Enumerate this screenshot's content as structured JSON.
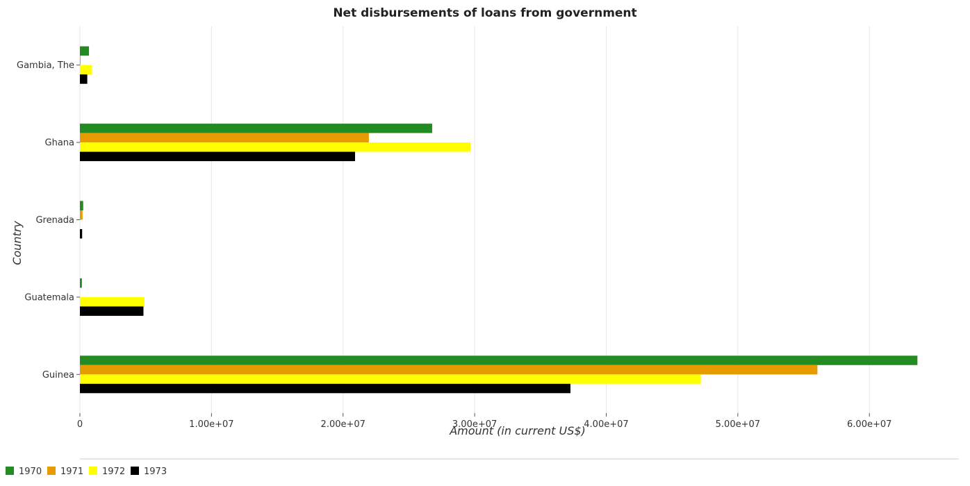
{
  "chart_data": {
    "type": "bar",
    "orientation": "horizontal",
    "title": "Net disbursements of loans from government",
    "xlabel": "Amount (in current US$)",
    "ylabel": "Country",
    "categories": [
      "Gambia, The",
      "Ghana",
      "Grenada",
      "Guatemala",
      "Guinea"
    ],
    "x_ticks": [
      0,
      10000000,
      20000000,
      30000000,
      40000000,
      50000000,
      60000000
    ],
    "x_tick_labels": [
      "0",
      "1.00e+07",
      "2.00e+07",
      "3.00e+07",
      "4.00e+07",
      "5.00e+07",
      "6.00e+07"
    ],
    "xlim": [
      0,
      66800000
    ],
    "legend_position": "bottom-left",
    "series": [
      {
        "name": "1970",
        "color": "#228b22",
        "values": [
          690000,
          26770000,
          250000,
          150000,
          63650000
        ]
      },
      {
        "name": "1971",
        "color": "#e69b00",
        "values": [
          50000,
          21960000,
          200000,
          0,
          56050000
        ]
      },
      {
        "name": "1972",
        "color": "#ffff00",
        "values": [
          920000,
          29680000,
          0,
          4900000,
          47190000
        ]
      },
      {
        "name": "1973",
        "color": "#000000",
        "values": [
          560000,
          20910000,
          170000,
          4830000,
          37280000
        ]
      }
    ]
  }
}
